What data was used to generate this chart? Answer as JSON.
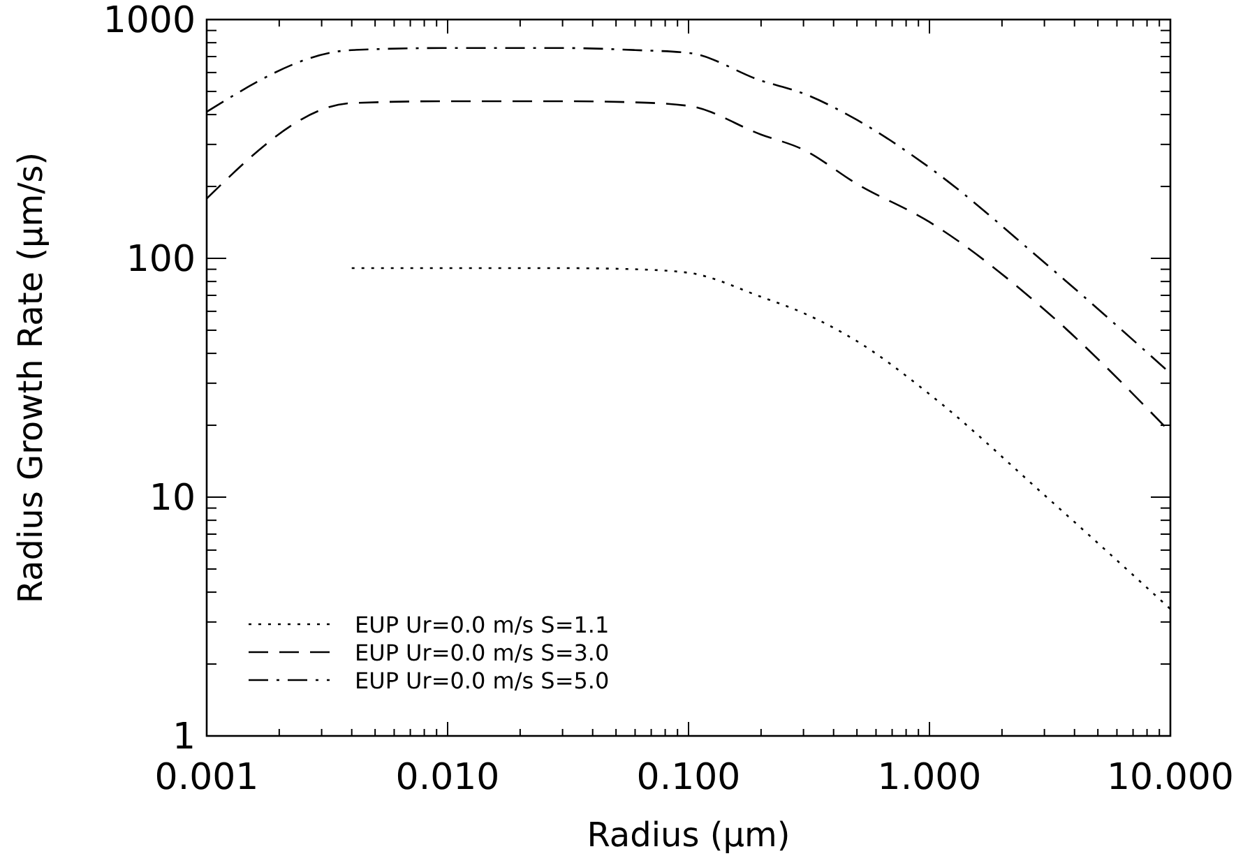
{
  "chart_data": {
    "type": "line",
    "xlabel": "Radius (μm)",
    "ylabel": "Radius Growth Rate (μm/s)",
    "log": "xy",
    "legend": "bottom left",
    "grid": false,
    "xlim": [
      0.001,
      10
    ],
    "ylim": [
      1,
      1000
    ],
    "xticks": [
      {
        "value": 0.001,
        "label": "0.001"
      },
      {
        "value": 0.002,
        "label": null
      },
      {
        "value": 0.003,
        "label": null
      },
      {
        "value": 0.004,
        "label": null
      },
      {
        "value": 0.005,
        "label": null
      },
      {
        "value": 0.006,
        "label": null
      },
      {
        "value": 0.007,
        "label": null
      },
      {
        "value": 0.008,
        "label": null
      },
      {
        "value": 0.009,
        "label": null
      },
      {
        "value": 0.01,
        "label": "0.010"
      },
      {
        "value": 0.02,
        "label": null
      },
      {
        "value": 0.03,
        "label": null
      },
      {
        "value": 0.04,
        "label": null
      },
      {
        "value": 0.05,
        "label": null
      },
      {
        "value": 0.06,
        "label": null
      },
      {
        "value": 0.07,
        "label": null
      },
      {
        "value": 0.08,
        "label": null
      },
      {
        "value": 0.09,
        "label": null
      },
      {
        "value": 0.1,
        "label": "0.100"
      },
      {
        "value": 0.2,
        "label": null
      },
      {
        "value": 0.3,
        "label": null
      },
      {
        "value": 0.4,
        "label": null
      },
      {
        "value": 0.5,
        "label": null
      },
      {
        "value": 0.6,
        "label": null
      },
      {
        "value": 0.7,
        "label": null
      },
      {
        "value": 0.8,
        "label": null
      },
      {
        "value": 0.9,
        "label": null
      },
      {
        "value": 1,
        "label": "1.000"
      },
      {
        "value": 2,
        "label": null
      },
      {
        "value": 3,
        "label": null
      },
      {
        "value": 4,
        "label": null
      },
      {
        "value": 5,
        "label": null
      },
      {
        "value": 6,
        "label": null
      },
      {
        "value": 7,
        "label": null
      },
      {
        "value": 8,
        "label": null
      },
      {
        "value": 9,
        "label": null
      },
      {
        "value": 10,
        "label": "10.000"
      }
    ],
    "yticks": [
      1,
      {
        "value": 2,
        "label": null
      },
      {
        "value": 3,
        "label": null
      },
      {
        "value": 4,
        "label": null
      },
      {
        "value": 5,
        "label": null
      },
      {
        "value": 6,
        "label": null
      },
      {
        "value": 7,
        "label": null
      },
      {
        "value": 8,
        "label": null
      },
      {
        "value": 9,
        "label": null
      },
      10,
      {
        "value": 20,
        "label": null
      },
      {
        "value": 30,
        "label": null
      },
      {
        "value": 40,
        "label": null
      },
      {
        "value": 50,
        "label": null
      },
      {
        "value": 60,
        "label": null
      },
      {
        "value": 70,
        "label": null
      },
      {
        "value": 80,
        "label": null
      },
      {
        "value": 90,
        "label": null
      },
      100,
      {
        "value": 200,
        "label": null
      },
      {
        "value": 300,
        "label": null
      },
      {
        "value": 400,
        "label": null
      },
      {
        "value": 500,
        "label": null
      },
      {
        "value": 600,
        "label": null
      },
      {
        "value": 700,
        "label": null
      },
      {
        "value": 800,
        "label": null
      },
      {
        "value": 900,
        "label": null
      },
      1000
    ],
    "series": [
      {
        "name": "EUP Ur=0.0 m/s S=1.1",
        "color": "#000000",
        "line_style": "dotted",
        "x": [
          0.004,
          0.01,
          0.03,
          0.06,
          0.1,
          0.2,
          0.3,
          0.5,
          1,
          3,
          10
        ],
        "values": [
          91,
          91,
          91,
          90,
          87,
          69,
          59,
          45,
          27,
          10.2,
          3.4
        ]
      },
      {
        "name": "EUP Ur=0.0 m/s S=3.0",
        "color": "#000000",
        "line_style": "dashed",
        "x": [
          0.001,
          0.004,
          0.01,
          0.03,
          0.06,
          0.1,
          0.2,
          0.3,
          0.5,
          1,
          3,
          10
        ],
        "values": [
          178,
          447,
          455,
          455,
          450,
          435,
          330,
          285,
          205,
          142,
          61,
          18.7
        ]
      },
      {
        "name": "EUP Ur=0.0 m/s S=5.0",
        "color": "#000000",
        "line_style": "dashdot",
        "x": [
          0.001,
          0.004,
          0.01,
          0.03,
          0.06,
          0.1,
          0.2,
          0.3,
          0.5,
          1,
          3,
          10
        ],
        "values": [
          411,
          745,
          760,
          760,
          745,
          725,
          555,
          490,
          380,
          240,
          96,
          33
        ]
      }
    ]
  }
}
